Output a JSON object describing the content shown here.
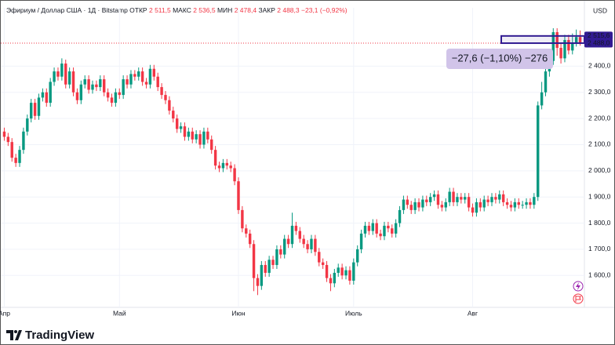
{
  "chart_data": {
    "type": "candlestick",
    "header": {
      "symbol": "Эфириум / Доллар США · 1Д · Bitstamp",
      "stats": [
        {
          "name": "ОТКР",
          "value": "2 511,5"
        },
        {
          "name": "МАКС",
          "value": "2 536,5"
        },
        {
          "name": "МИН",
          "value": "2 478,4"
        },
        {
          "name": "ЗАКР",
          "value": "2 488,3"
        }
      ],
      "change": "−23,1 (−0,92%)"
    },
    "currency": "USD",
    "brand": "TradingView",
    "up_color": "#089981",
    "down_color": "#f23645",
    "categories": [
      "Апр",
      null,
      null,
      null,
      null,
      null,
      null,
      null,
      null,
      null,
      null,
      null,
      null,
      null,
      null,
      null,
      null,
      null,
      null,
      null,
      null,
      null,
      null,
      null,
      null,
      null,
      null,
      null,
      null,
      null,
      "Май",
      null,
      null,
      null,
      null,
      null,
      null,
      null,
      null,
      null,
      null,
      null,
      null,
      null,
      null,
      null,
      null,
      null,
      null,
      null,
      null,
      null,
      null,
      null,
      null,
      null,
      null,
      null,
      null,
      null,
      null,
      "Июн",
      null,
      null,
      null,
      null,
      null,
      null,
      null,
      null,
      null,
      null,
      null,
      null,
      null,
      null,
      null,
      null,
      null,
      null,
      null,
      null,
      null,
      null,
      null,
      null,
      null,
      null,
      null,
      null,
      null,
      "Июль",
      null,
      null,
      null,
      null,
      null,
      null,
      null,
      null,
      null,
      null,
      null,
      null,
      null,
      null,
      null,
      null,
      null,
      null,
      null,
      null,
      null,
      null,
      null,
      null,
      null,
      null,
      null,
      null,
      null,
      null,
      "Авг",
      null,
      null,
      null,
      null,
      null,
      null,
      null,
      null,
      null,
      null,
      null,
      null,
      null,
      null,
      null,
      null,
      null,
      null,
      null,
      null,
      null,
      null,
      null,
      null,
      null,
      null,
      null,
      null
    ],
    "open": [
      2150,
      2130,
      2110,
      2050,
      2030,
      2080,
      2150,
      2200,
      2260,
      2210,
      2280,
      2300,
      2260,
      2340,
      2380,
      2360,
      2410,
      2330,
      2380,
      2300,
      2270,
      2330,
      2350,
      2310,
      2330,
      2320,
      2350,
      2300,
      2280,
      2260,
      2300,
      2290,
      2350,
      2330,
      2370,
      2360,
      2380,
      2340,
      2330,
      2390,
      2360,
      2320,
      2290,
      2270,
      2230,
      2200,
      2160,
      2170,
      2130,
      2150,
      2120,
      2140,
      2100,
      2150,
      2120,
      2080,
      2020,
      2010,
      2030,
      2020,
      2010,
      1960,
      1850,
      1780,
      1760,
      1720,
      1590,
      1560,
      1640,
      1610,
      1660,
      1640,
      1700,
      1680,
      1740,
      1720,
      1790,
      1770,
      1740,
      1720,
      1700,
      1740,
      1690,
      1650,
      1640,
      1590,
      1570,
      1610,
      1630,
      1600,
      1620,
      1580,
      1650,
      1700,
      1760,
      1790,
      1770,
      1800,
      1760,
      1750,
      1790,
      1780,
      1760,
      1800,
      1850,
      1890,
      1870,
      1850,
      1880,
      1860,
      1890,
      1880,
      1900,
      1910,
      1870,
      1860,
      1880,
      1920,
      1880,
      1900,
      1890,
      1900,
      1860,
      1840,
      1880,
      1860,
      1890,
      1880,
      1900,
      1890,
      1910,
      1880,
      1870,
      1860,
      1880,
      1870,
      1870,
      1880,
      1870,
      1900,
      2250,
      2300,
      2380,
      2420,
      2530,
      2470,
      2430,
      2500,
      2460,
      2490,
      2511.5
    ],
    "high": [
      2165,
      2145,
      2125,
      2065,
      2095,
      2165,
      2215,
      2275,
      2275,
      2295,
      2315,
      2315,
      2355,
      2395,
      2395,
      2430,
      2425,
      2395,
      2395,
      2315,
      2345,
      2365,
      2365,
      2345,
      2345,
      2365,
      2365,
      2315,
      2295,
      2315,
      2315,
      2365,
      2365,
      2385,
      2385,
      2395,
      2395,
      2355,
      2405,
      2405,
      2375,
      2335,
      2305,
      2285,
      2245,
      2215,
      2185,
      2185,
      2165,
      2165,
      2155,
      2155,
      2165,
      2165,
      2135,
      2095,
      2035,
      2045,
      2045,
      2035,
      2025,
      1975,
      1865,
      1795,
      1775,
      1735,
      1605,
      1655,
      1655,
      1675,
      1675,
      1715,
      1715,
      1755,
      1755,
      1840,
      1805,
      1785,
      1755,
      1735,
      1755,
      1755,
      1705,
      1665,
      1655,
      1605,
      1625,
      1645,
      1645,
      1635,
      1635,
      1665,
      1715,
      1775,
      1805,
      1805,
      1815,
      1815,
      1775,
      1805,
      1805,
      1795,
      1815,
      1865,
      1905,
      1905,
      1885,
      1895,
      1895,
      1905,
      1905,
      1915,
      1925,
      1925,
      1885,
      1895,
      1935,
      1935,
      1915,
      1915,
      1915,
      1915,
      1875,
      1895,
      1895,
      1905,
      1905,
      1915,
      1915,
      1925,
      1925,
      1895,
      1885,
      1895,
      1895,
      1885,
      1895,
      1895,
      1915,
      2265,
      2340,
      2400,
      2440,
      2545,
      2545,
      2490,
      2520,
      2520,
      2525,
      2540,
      2536.5
    ],
    "low": [
      2115,
      2095,
      2035,
      2015,
      2015,
      2065,
      2135,
      2185,
      2195,
      2195,
      2265,
      2245,
      2245,
      2325,
      2345,
      2345,
      2315,
      2315,
      2285,
      2255,
      2255,
      2315,
      2295,
      2295,
      2305,
      2305,
      2285,
      2265,
      2245,
      2245,
      2275,
      2275,
      2315,
      2315,
      2345,
      2345,
      2325,
      2315,
      2315,
      2345,
      2305,
      2275,
      2255,
      2215,
      2185,
      2145,
      2145,
      2115,
      2115,
      2105,
      2105,
      2085,
      2085,
      2105,
      2065,
      2005,
      1995,
      1995,
      2005,
      1995,
      1945,
      1835,
      1765,
      1745,
      1705,
      1540,
      1525,
      1545,
      1595,
      1595,
      1625,
      1625,
      1665,
      1665,
      1705,
      1705,
      1755,
      1725,
      1705,
      1685,
      1685,
      1675,
      1635,
      1625,
      1575,
      1540,
      1555,
      1595,
      1585,
      1585,
      1565,
      1565,
      1635,
      1685,
      1745,
      1755,
      1755,
      1745,
      1735,
      1735,
      1765,
      1745,
      1745,
      1785,
      1835,
      1855,
      1835,
      1835,
      1845,
      1845,
      1865,
      1865,
      1885,
      1855,
      1845,
      1845,
      1865,
      1865,
      1865,
      1875,
      1875,
      1845,
      1825,
      1825,
      1845,
      1845,
      1865,
      1865,
      1875,
      1875,
      1865,
      1855,
      1845,
      1845,
      1855,
      1855,
      1855,
      1855,
      1855,
      1885,
      2235,
      2285,
      2360,
      2405,
      2440,
      2410,
      2415,
      2445,
      2445,
      2475,
      2478.4
    ],
    "close": [
      2130,
      2110,
      2050,
      2030,
      2080,
      2150,
      2200,
      2260,
      2210,
      2280,
      2300,
      2260,
      2340,
      2380,
      2360,
      2410,
      2330,
      2380,
      2300,
      2270,
      2330,
      2350,
      2310,
      2330,
      2320,
      2350,
      2300,
      2280,
      2260,
      2300,
      2290,
      2350,
      2330,
      2370,
      2360,
      2380,
      2340,
      2330,
      2390,
      2360,
      2320,
      2290,
      2270,
      2230,
      2200,
      2160,
      2170,
      2130,
      2150,
      2120,
      2140,
      2100,
      2150,
      2120,
      2080,
      2020,
      2010,
      2030,
      2020,
      2010,
      1960,
      1850,
      1780,
      1760,
      1720,
      1590,
      1560,
      1640,
      1610,
      1660,
      1640,
      1700,
      1680,
      1740,
      1720,
      1790,
      1770,
      1740,
      1720,
      1700,
      1740,
      1690,
      1650,
      1640,
      1590,
      1570,
      1610,
      1630,
      1600,
      1620,
      1580,
      1650,
      1700,
      1760,
      1790,
      1770,
      1800,
      1760,
      1750,
      1790,
      1780,
      1760,
      1800,
      1850,
      1890,
      1870,
      1850,
      1880,
      1860,
      1890,
      1880,
      1900,
      1910,
      1870,
      1860,
      1880,
      1920,
      1880,
      1900,
      1890,
      1900,
      1860,
      1840,
      1880,
      1860,
      1890,
      1880,
      1900,
      1890,
      1910,
      1880,
      1870,
      1860,
      1880,
      1870,
      1870,
      1880,
      1870,
      1900,
      2250,
      2300,
      2380,
      2420,
      2530,
      2470,
      2430,
      2500,
      2460,
      2490,
      2511.5,
      2488.3
    ],
    "ylim": [
      1478,
      2623
    ],
    "yticks": [
      {
        "value": 1600,
        "label": "1 600,0"
      },
      {
        "value": 1700,
        "label": "1 700,0"
      },
      {
        "value": 1800,
        "label": "1 800,0"
      },
      {
        "value": 1900,
        "label": "1 900,0"
      },
      {
        "value": 2000,
        "label": "2 000,0"
      },
      {
        "value": 2100,
        "label": "2 100,0"
      },
      {
        "value": 2200,
        "label": "2 200,0"
      },
      {
        "value": 2300,
        "label": "2 300,0"
      },
      {
        "value": 2400,
        "label": "2 400,0"
      }
    ],
    "grid": true,
    "price_labels": [
      {
        "value": 2515.6,
        "label": "2 515,6",
        "color": "#311b92"
      },
      {
        "value": 2488.3,
        "label": "2 488,3",
        "color": "#f23645"
      },
      {
        "value": 2488.0,
        "label": "2 488,0",
        "color": "#311b92"
      }
    ],
    "measure_label": "−27,6 (−1,10%) −276"
  }
}
